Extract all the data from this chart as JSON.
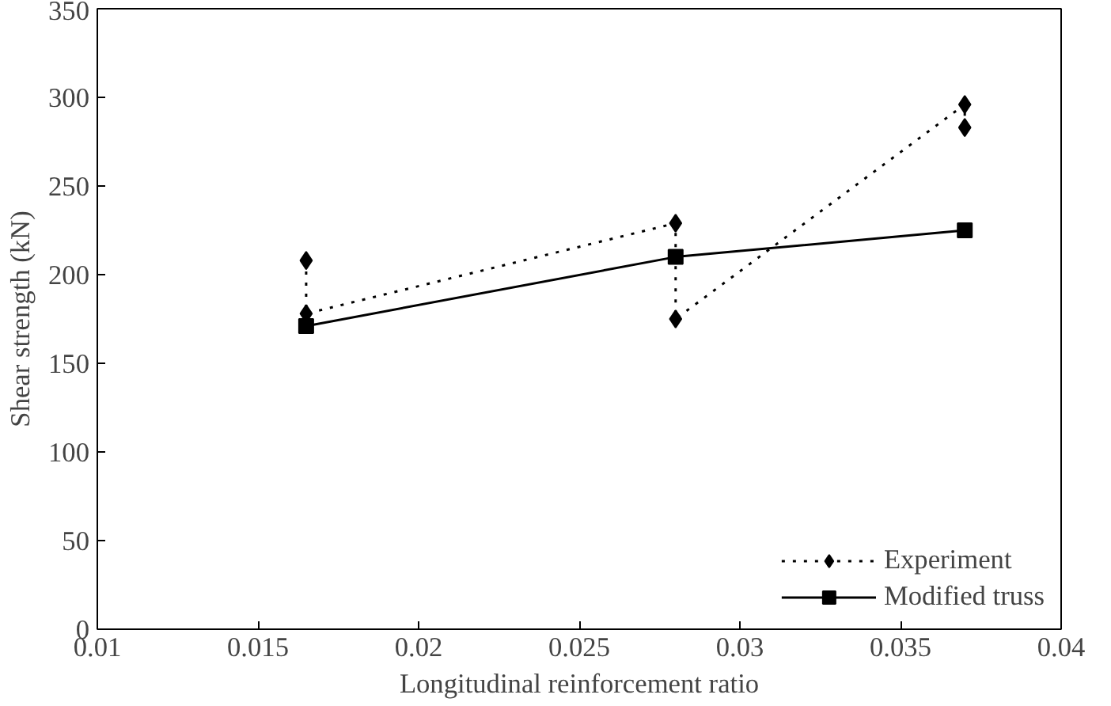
{
  "chart_data": {
    "type": "line",
    "xlabel": "Longitudinal reinforcement ratio",
    "ylabel": "Shear strength (kN)",
    "xlim": [
      0.01,
      0.04
    ],
    "xticks": [
      {
        "value": 0.01,
        "label": "0.01"
      },
      {
        "value": 0.015,
        "label": "0.015"
      },
      {
        "value": 0.02,
        "label": "0.02"
      },
      {
        "value": 0.025,
        "label": "0.025"
      },
      {
        "value": 0.03,
        "label": "0.03"
      },
      {
        "value": 0.035,
        "label": "0.035"
      },
      {
        "value": 0.04,
        "label": "0.04"
      }
    ],
    "ylim": [
      0,
      350
    ],
    "yticks": [
      0,
      50,
      100,
      150,
      200,
      250,
      300,
      350
    ],
    "grid": false,
    "legend": "bottom right",
    "series": [
      {
        "name": "Experiment",
        "color": "#000000",
        "marker": "diamond",
        "line_style": "dotted",
        "x": [
          0.0165,
          0.0165,
          0.028,
          0.028,
          0.037,
          0.037
        ],
        "values": [
          208,
          178,
          229,
          175,
          296,
          283
        ]
      },
      {
        "name": "Modified truss",
        "color": "#000000",
        "marker": "square",
        "line_style": "solid",
        "x": [
          0.0165,
          0.028,
          0.037
        ],
        "values": [
          171,
          210,
          225
        ]
      }
    ]
  }
}
